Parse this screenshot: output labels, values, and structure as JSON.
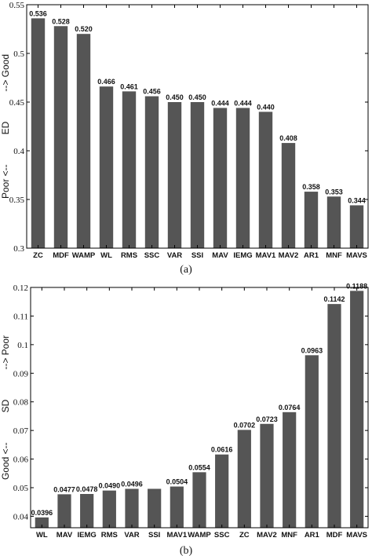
{
  "chart_data": [
    {
      "type": "bar",
      "caption": "(a)",
      "ylabel": "Poor <-- ED --> Good",
      "ylabel_parts": {
        "low": "Poor <--",
        "mid": "ED",
        "high": "--> Good"
      },
      "ylim": [
        0.3,
        0.55
      ],
      "yticks": [
        0.3,
        0.35,
        0.4,
        0.45,
        0.5,
        0.55
      ],
      "ytick_labels": [
        "0.3",
        "0.35",
        "0.4",
        "0.45",
        "0.5",
        "0.55"
      ],
      "categories": [
        "ZC",
        "MDF",
        "WAMP",
        "WL",
        "RMS",
        "SSC",
        "VAR",
        "SSI",
        "MAV",
        "IEMG",
        "MAV1",
        "MAV2",
        "AR1",
        "MNF",
        "MAVS"
      ],
      "values": [
        0.536,
        0.528,
        0.52,
        0.466,
        0.461,
        0.456,
        0.45,
        0.45,
        0.444,
        0.444,
        0.44,
        0.408,
        0.358,
        0.353,
        0.344
      ],
      "value_labels": [
        "0.536",
        "0.528",
        "0.520",
        "0.466",
        "0.461",
        "0.456",
        "0.450",
        "0.450",
        "0.444",
        "0.444",
        "0.440",
        "0.408",
        "0.358",
        "0.353",
        "0.344"
      ],
      "bar_color": "#555555",
      "grid": false
    },
    {
      "type": "bar",
      "caption": "(b)",
      "ylabel": "Good <-- SD --> Poor",
      "ylabel_parts": {
        "low": "Good <--",
        "mid": "SD",
        "high": "--> Poor"
      },
      "ylim": [
        0.036,
        0.12
      ],
      "yticks": [
        0.04,
        0.05,
        0.06,
        0.07,
        0.08,
        0.09,
        0.1,
        0.11,
        0.12
      ],
      "ytick_labels": [
        "0.04",
        "0.05",
        "0.06",
        "0.07",
        "0.08",
        "0.09",
        "0.1",
        "0.11",
        "0.12"
      ],
      "categories": [
        "WL",
        "MAV",
        "IEMG",
        "RMS",
        "VAR",
        "SSI",
        "MAV1",
        "WAMP",
        "SSC",
        "ZC",
        "MAV2",
        "MNF",
        "AR1",
        "MDF",
        "MAVS"
      ],
      "values": [
        0.0396,
        0.0477,
        0.0478,
        0.049,
        0.0496,
        0.0496,
        0.0504,
        0.0554,
        0.0616,
        0.0702,
        0.0723,
        0.0764,
        0.0963,
        0.1142,
        0.1188
      ],
      "value_labels": [
        "0.0396",
        "0.0477",
        "0.0478",
        "0.0490",
        "0.0496",
        "",
        "0.0504",
        "0.0554",
        "0.0616",
        "0.0702",
        "0.0723",
        "0.0764",
        "0.0963",
        "0.1142",
        "0.1188"
      ],
      "bar_color": "#555555",
      "grid": false
    }
  ]
}
